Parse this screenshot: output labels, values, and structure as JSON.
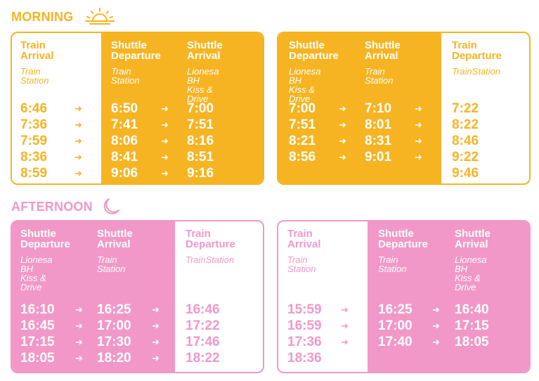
{
  "morning": {
    "title": "MORNING",
    "icon": "sunrise-icon",
    "left_table": {
      "columns": [
        {
          "header": "Train\nArrival",
          "location": "Train Station",
          "times": [
            "6:46",
            "7:36",
            "7:59",
            "8:36",
            "8:59"
          ]
        },
        {
          "header": "Shuttle\nDeparture",
          "location": "Train Station",
          "times": [
            "6:50",
            "7:41",
            "8:06",
            "8:41",
            "9:06"
          ]
        },
        {
          "header": "Shuttle\nArrival",
          "location": "Lionesa BH\nKiss & Drive",
          "times": [
            "7:00",
            "7:51",
            "8:16",
            "8:51",
            "9:16"
          ]
        }
      ]
    },
    "right_table": {
      "columns": [
        {
          "header": "Shuttle\nDeparture",
          "location": "Lionesa BH\nKiss & Drive",
          "times": [
            "7:00",
            "7:51",
            "8:21",
            "8:56"
          ]
        },
        {
          "header": "Shuttle\nArrival",
          "location": "Train Station",
          "times": [
            "7:10",
            "8:01",
            "8:31",
            "9:01"
          ]
        },
        {
          "header": "Train\nDeparture",
          "location": "TrainStation",
          "times": [
            "7:22",
            "8:22",
            "8:46",
            "9:22",
            "9:46"
          ]
        }
      ]
    }
  },
  "afternoon": {
    "title": "AFTERNOON",
    "icon": "crescent-moon-icon",
    "left_table": {
      "columns": [
        {
          "header": "Shuttle\nDeparture",
          "location": "Lionesa BH\nKiss & Drive",
          "times": [
            "16:10",
            "16:45",
            "17:15",
            "18:05"
          ]
        },
        {
          "header": "Shuttle\nArrival",
          "location": "Train Station",
          "times": [
            "16:25",
            "17:00",
            "17:30",
            "18:20"
          ]
        },
        {
          "header": "Train\nDeparture",
          "location": "TrainStation",
          "times": [
            "16:46",
            "17:22",
            "17:46",
            "18:22"
          ]
        }
      ]
    },
    "right_table": {
      "columns": [
        {
          "header": "Train\nArrival",
          "location": "Train Station",
          "times": [
            "15:59",
            "16:59",
            "17:36",
            "18:36"
          ]
        },
        {
          "header": "Shuttle\nDeparture",
          "location": "Train Station",
          "times": [
            "16:25",
            "17:00",
            "17:40"
          ]
        },
        {
          "header": "Shuttle\nArrival",
          "location": "Lionesa BH\nKiss & Drive",
          "times": [
            "16:40",
            "17:15",
            "18:05"
          ]
        }
      ]
    }
  },
  "colors": {
    "morning_accent": "#f6b422",
    "afternoon_accent": "#f198c8",
    "background": "#ffffff"
  },
  "arrow_icon": "arrow-right-icon"
}
